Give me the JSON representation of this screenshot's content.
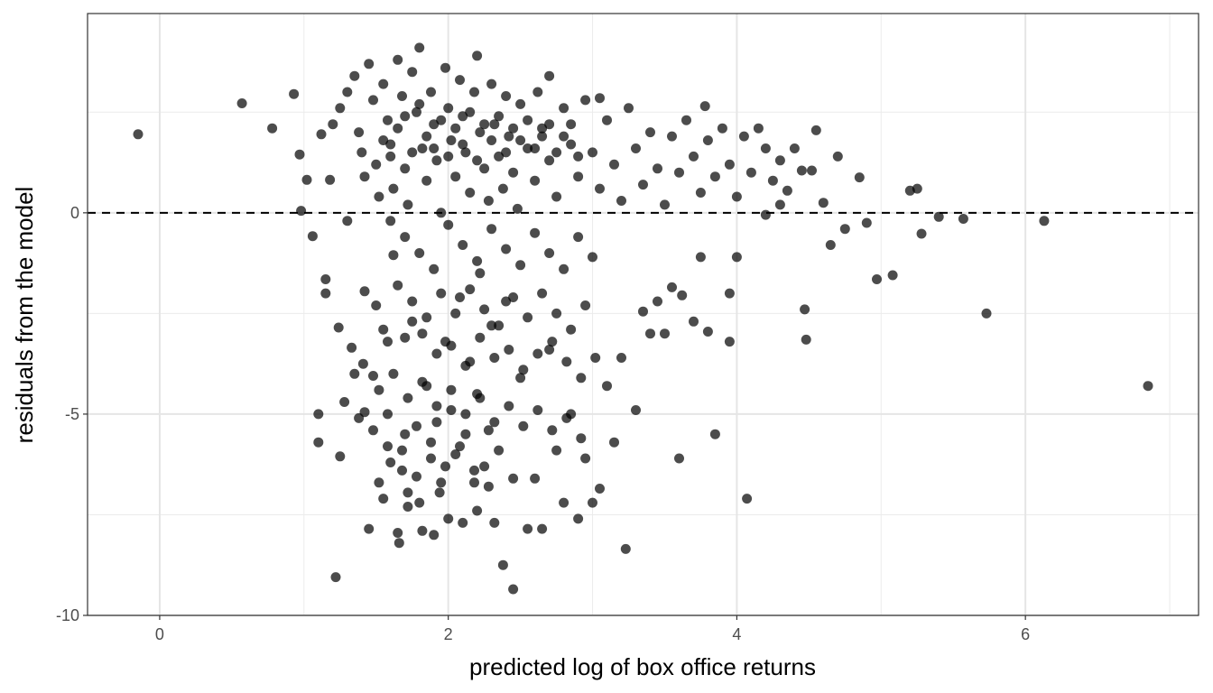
{
  "chart_data": {
    "type": "scatter",
    "title": "",
    "xlabel": "predicted log of box office returns",
    "ylabel": "residuals from the model",
    "xlim": [
      -0.5,
      7.2
    ],
    "ylim": [
      -10.0,
      4.95
    ],
    "x_ticks": [
      0,
      2,
      4,
      6
    ],
    "x_tick_labels": [
      "0",
      "2",
      "4",
      "6"
    ],
    "y_ticks": [
      -10,
      -5,
      0
    ],
    "y_tick_labels": [
      "-10",
      "-5",
      "0"
    ],
    "grid": true,
    "reference_line": {
      "y": 0,
      "style": "dashed"
    },
    "point_color": "#000000",
    "point_opacity": 0.7,
    "points": [
      [
        -0.15,
        1.95
      ],
      [
        0.57,
        2.72
      ],
      [
        0.78,
        2.1
      ],
      [
        0.93,
        2.95
      ],
      [
        0.98,
        0.05
      ],
      [
        0.97,
        1.45
      ],
      [
        1.02,
        0.82
      ],
      [
        1.06,
        -0.58
      ],
      [
        1.1,
        -5.0
      ],
      [
        1.1,
        -5.7
      ],
      [
        1.12,
        1.95
      ],
      [
        1.15,
        -1.65
      ],
      [
        1.15,
        -2.0
      ],
      [
        1.18,
        0.82
      ],
      [
        1.22,
        -9.05
      ],
      [
        1.24,
        -2.85
      ],
      [
        1.25,
        -6.05
      ],
      [
        1.28,
        -4.7
      ],
      [
        1.3,
        -0.2
      ],
      [
        1.33,
        -3.35
      ],
      [
        1.35,
        -4.0
      ],
      [
        1.38,
        -5.1
      ],
      [
        1.41,
        -3.75
      ],
      [
        1.42,
        -1.95
      ],
      [
        1.45,
        -7.85
      ],
      [
        1.48,
        -4.05
      ],
      [
        1.5,
        -2.3
      ],
      [
        1.55,
        -7.1
      ],
      [
        1.58,
        -5.8
      ],
      [
        1.6,
        -6.2
      ],
      [
        1.62,
        -1.05
      ],
      [
        1.65,
        -7.95
      ],
      [
        1.66,
        -8.2
      ],
      [
        1.68,
        -6.4
      ],
      [
        1.7,
        -5.5
      ],
      [
        1.72,
        -7.3
      ],
      [
        1.75,
        -2.7
      ],
      [
        1.78,
        -6.55
      ],
      [
        1.8,
        -7.2
      ],
      [
        1.82,
        -7.9
      ],
      [
        1.85,
        -4.3
      ],
      [
        1.88,
        -6.1
      ],
      [
        1.9,
        -8.0
      ],
      [
        1.92,
        -5.2
      ],
      [
        1.95,
        -6.7
      ],
      [
        1.98,
        -3.2
      ],
      [
        2.0,
        -7.6
      ],
      [
        2.02,
        -4.9
      ],
      [
        2.05,
        -6.0
      ],
      [
        2.08,
        -2.1
      ],
      [
        2.1,
        -7.7
      ],
      [
        2.12,
        -5.5
      ],
      [
        2.15,
        -3.7
      ],
      [
        2.18,
        -6.7
      ],
      [
        2.2,
        -4.5
      ],
      [
        2.22,
        -1.5
      ],
      [
        2.25,
        -6.3
      ],
      [
        2.28,
        -5.4
      ],
      [
        2.3,
        -2.8
      ],
      [
        2.32,
        -7.7
      ],
      [
        2.35,
        -5.9
      ],
      [
        2.38,
        -8.75
      ],
      [
        2.4,
        -2.2
      ],
      [
        2.45,
        -9.35
      ],
      [
        2.45,
        -6.6
      ],
      [
        2.5,
        -4.1
      ],
      [
        2.55,
        -7.85
      ],
      [
        2.6,
        -6.6
      ],
      [
        2.65,
        -7.85
      ],
      [
        2.7,
        -3.4
      ],
      [
        2.75,
        -5.9
      ],
      [
        2.8,
        -7.2
      ],
      [
        2.85,
        -5.0
      ],
      [
        2.9,
        -7.6
      ],
      [
        2.95,
        -6.1
      ],
      [
        3.0,
        -7.2
      ],
      [
        3.05,
        -6.85
      ],
      [
        3.1,
        -4.3
      ],
      [
        3.15,
        -5.7
      ],
      [
        3.2,
        -3.6
      ],
      [
        3.23,
        -8.35
      ],
      [
        3.3,
        -4.9
      ],
      [
        3.35,
        -2.45
      ],
      [
        3.4,
        -3.0
      ],
      [
        3.45,
        -2.2
      ],
      [
        3.5,
        -3.0
      ],
      [
        3.55,
        -1.85
      ],
      [
        3.6,
        -6.1
      ],
      [
        3.62,
        -2.05
      ],
      [
        3.7,
        -2.7
      ],
      [
        3.75,
        -1.1
      ],
      [
        3.8,
        -2.95
      ],
      [
        3.85,
        -5.5
      ],
      [
        3.95,
        -2.0
      ],
      [
        3.95,
        -3.2
      ],
      [
        4.0,
        -1.1
      ],
      [
        4.07,
        -7.1
      ],
      [
        4.2,
        -0.05
      ],
      [
        4.3,
        0.2
      ],
      [
        4.35,
        0.55
      ],
      [
        4.45,
        1.05
      ],
      [
        4.47,
        -2.4
      ],
      [
        4.48,
        -3.15
      ],
      [
        4.52,
        1.05
      ],
      [
        4.55,
        2.05
      ],
      [
        4.6,
        0.25
      ],
      [
        4.65,
        -0.8
      ],
      [
        4.7,
        1.4
      ],
      [
        4.75,
        -0.4
      ],
      [
        4.85,
        0.88
      ],
      [
        4.9,
        -0.25
      ],
      [
        4.97,
        -1.65
      ],
      [
        5.08,
        -1.55
      ],
      [
        5.2,
        0.55
      ],
      [
        5.25,
        0.6
      ],
      [
        5.28,
        -0.52
      ],
      [
        5.4,
        -0.1
      ],
      [
        5.57,
        -0.15
      ],
      [
        5.73,
        -2.5
      ],
      [
        6.13,
        -0.2
      ],
      [
        6.85,
        -4.3
      ],
      [
        1.2,
        2.2
      ],
      [
        1.25,
        2.6
      ],
      [
        1.3,
        3.0
      ],
      [
        1.35,
        3.4
      ],
      [
        1.38,
        2.0
      ],
      [
        1.4,
        1.5
      ],
      [
        1.42,
        0.9
      ],
      [
        1.45,
        3.7
      ],
      [
        1.48,
        2.8
      ],
      [
        1.5,
        1.2
      ],
      [
        1.52,
        0.4
      ],
      [
        1.55,
        3.2
      ],
      [
        1.58,
        2.3
      ],
      [
        1.6,
        1.7
      ],
      [
        1.62,
        0.6
      ],
      [
        1.65,
        3.8
      ],
      [
        1.68,
        2.9
      ],
      [
        1.7,
        1.1
      ],
      [
        1.72,
        0.2
      ],
      [
        1.75,
        3.5
      ],
      [
        1.78,
        2.5
      ],
      [
        1.8,
        4.1
      ],
      [
        1.82,
        1.6
      ],
      [
        1.85,
        0.8
      ],
      [
        1.88,
        3.0
      ],
      [
        1.9,
        2.2
      ],
      [
        1.92,
        1.3
      ],
      [
        1.95,
        0.0
      ],
      [
        1.98,
        3.6
      ],
      [
        2.0,
        2.6
      ],
      [
        2.02,
        1.8
      ],
      [
        2.05,
        0.9
      ],
      [
        2.08,
        3.3
      ],
      [
        2.1,
        2.4
      ],
      [
        2.12,
        1.5
      ],
      [
        2.15,
        0.5
      ],
      [
        2.18,
        3.0
      ],
      [
        2.2,
        3.9
      ],
      [
        2.22,
        2.0
      ],
      [
        2.25,
        1.1
      ],
      [
        2.28,
        0.3
      ],
      [
        2.3,
        3.2
      ],
      [
        2.32,
        2.2
      ],
      [
        2.35,
        1.4
      ],
      [
        2.38,
        0.6
      ],
      [
        2.4,
        2.9
      ],
      [
        2.42,
        1.9
      ],
      [
        2.45,
        1.0
      ],
      [
        2.48,
        0.1
      ],
      [
        2.5,
        2.7
      ],
      [
        2.55,
        1.6
      ],
      [
        2.6,
        0.8
      ],
      [
        2.62,
        3.0
      ],
      [
        2.65,
        2.1
      ],
      [
        2.7,
        1.3
      ],
      [
        2.75,
        0.4
      ],
      [
        2.8,
        2.6
      ],
      [
        2.85,
        1.7
      ],
      [
        2.9,
        0.9
      ],
      [
        2.95,
        2.8
      ],
      [
        3.0,
        1.5
      ],
      [
        3.05,
        0.6
      ],
      [
        3.1,
        2.3
      ],
      [
        3.15,
        1.2
      ],
      [
        3.2,
        0.3
      ],
      [
        3.25,
        2.6
      ],
      [
        3.3,
        1.6
      ],
      [
        3.35,
        0.7
      ],
      [
        3.4,
        2.0
      ],
      [
        3.45,
        1.1
      ],
      [
        3.5,
        0.2
      ],
      [
        3.55,
        1.9
      ],
      [
        3.6,
        1.0
      ],
      [
        3.65,
        2.3
      ],
      [
        3.7,
        1.4
      ],
      [
        3.75,
        0.5
      ],
      [
        3.8,
        1.8
      ],
      [
        3.85,
        0.9
      ],
      [
        3.9,
        2.1
      ],
      [
        3.95,
        1.2
      ],
      [
        4.0,
        0.4
      ],
      [
        4.05,
        1.9
      ],
      [
        4.1,
        1.0
      ],
      [
        4.15,
        2.1
      ],
      [
        4.2,
        1.6
      ],
      [
        4.25,
        0.8
      ],
      [
        4.3,
        1.3
      ],
      [
        4.4,
        1.6
      ],
      [
        3.78,
        2.65
      ],
      [
        3.05,
        2.85
      ],
      [
        2.7,
        3.4
      ],
      [
        1.55,
        1.8
      ],
      [
        1.6,
        1.4
      ],
      [
        1.65,
        2.1
      ],
      [
        1.7,
        2.4
      ],
      [
        1.75,
        1.5
      ],
      [
        1.8,
        2.7
      ],
      [
        1.85,
        1.9
      ],
      [
        1.9,
        1.6
      ],
      [
        1.95,
        2.3
      ],
      [
        2.0,
        1.4
      ],
      [
        2.05,
        2.1
      ],
      [
        2.1,
        1.7
      ],
      [
        2.15,
        2.5
      ],
      [
        2.2,
        1.3
      ],
      [
        2.25,
        2.2
      ],
      [
        2.3,
        1.8
      ],
      [
        2.35,
        2.4
      ],
      [
        2.4,
        1.5
      ],
      [
        2.45,
        2.1
      ],
      [
        2.5,
        1.8
      ],
      [
        2.55,
        2.3
      ],
      [
        2.6,
        1.6
      ],
      [
        2.65,
        1.9
      ],
      [
        2.7,
        2.2
      ],
      [
        2.75,
        1.5
      ],
      [
        2.8,
        1.9
      ],
      [
        2.85,
        2.2
      ],
      [
        2.9,
        1.4
      ],
      [
        1.6,
        -0.2
      ],
      [
        1.7,
        -0.6
      ],
      [
        1.8,
        -1.0
      ],
      [
        1.9,
        -1.4
      ],
      [
        2.0,
        -0.3
      ],
      [
        2.1,
        -0.8
      ],
      [
        2.2,
        -1.2
      ],
      [
        2.3,
        -0.4
      ],
      [
        2.4,
        -0.9
      ],
      [
        2.5,
        -1.3
      ],
      [
        2.6,
        -0.5
      ],
      [
        2.7,
        -1.0
      ],
      [
        2.8,
        -1.4
      ],
      [
        2.9,
        -0.6
      ],
      [
        3.0,
        -1.1
      ],
      [
        1.65,
        -1.8
      ],
      [
        1.75,
        -2.2
      ],
      [
        1.85,
        -2.6
      ],
      [
        1.95,
        -2.0
      ],
      [
        2.05,
        -2.5
      ],
      [
        2.15,
        -1.9
      ],
      [
        2.25,
        -2.4
      ],
      [
        2.35,
        -2.8
      ],
      [
        2.45,
        -2.1
      ],
      [
        2.55,
        -2.6
      ],
      [
        2.65,
        -2.0
      ],
      [
        2.75,
        -2.5
      ],
      [
        2.85,
        -2.9
      ],
      [
        2.95,
        -2.3
      ],
      [
        1.55,
        -2.9
      ],
      [
        1.58,
        -3.2
      ],
      [
        1.7,
        -3.1
      ],
      [
        1.82,
        -3.0
      ],
      [
        1.92,
        -3.5
      ],
      [
        2.02,
        -3.3
      ],
      [
        2.12,
        -3.8
      ],
      [
        2.22,
        -3.1
      ],
      [
        2.32,
        -3.6
      ],
      [
        2.42,
        -3.4
      ],
      [
        2.52,
        -3.9
      ],
      [
        2.62,
        -3.5
      ],
      [
        2.72,
        -3.2
      ],
      [
        2.82,
        -3.7
      ],
      [
        2.92,
        -4.1
      ],
      [
        3.02,
        -3.6
      ],
      [
        1.52,
        -4.4
      ],
      [
        1.62,
        -4.0
      ],
      [
        1.72,
        -4.6
      ],
      [
        1.82,
        -4.2
      ],
      [
        1.92,
        -4.8
      ],
      [
        2.02,
        -4.4
      ],
      [
        2.12,
        -5.0
      ],
      [
        2.22,
        -4.6
      ],
      [
        2.32,
        -5.2
      ],
      [
        2.42,
        -4.8
      ],
      [
        2.52,
        -5.3
      ],
      [
        2.62,
        -4.9
      ],
      [
        2.72,
        -5.4
      ],
      [
        2.82,
        -5.1
      ],
      [
        2.92,
        -5.6
      ],
      [
        1.48,
        -5.4
      ],
      [
        1.58,
        -5.0
      ],
      [
        1.68,
        -5.9
      ],
      [
        1.78,
        -5.3
      ],
      [
        1.88,
        -5.7
      ],
      [
        1.98,
        -6.3
      ],
      [
        2.08,
        -5.8
      ],
      [
        2.18,
        -6.4
      ],
      [
        2.28,
        -6.8
      ],
      [
        1.42,
        -4.95
      ],
      [
        1.52,
        -6.7
      ],
      [
        1.72,
        -6.95
      ],
      [
        1.94,
        -6.95
      ],
      [
        2.2,
        -7.4
      ]
    ]
  }
}
